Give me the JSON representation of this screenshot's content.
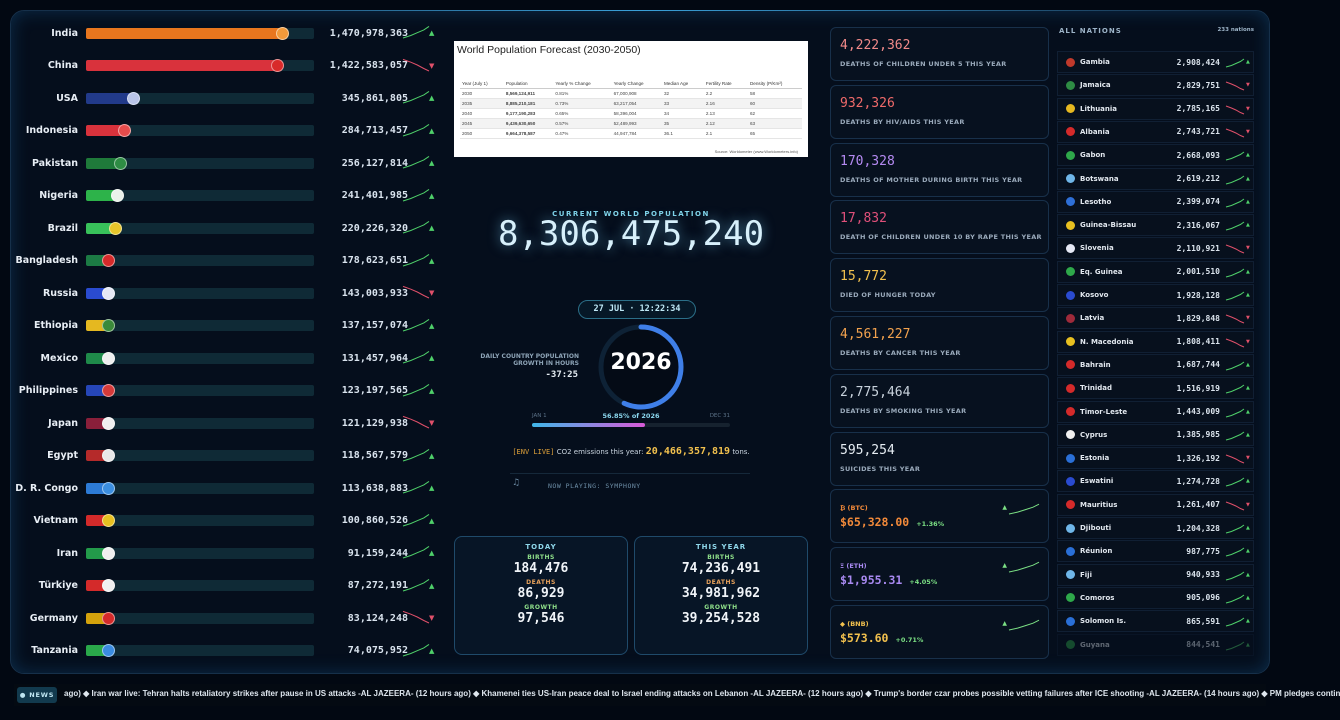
{
  "countries": [
    {
      "name": "India",
      "value": "1,470,978,363",
      "fill": 0.88,
      "color": "#e8761e",
      "flag": "#f29a3a",
      "trend": "up"
    },
    {
      "name": "China",
      "value": "1,422,583,057",
      "fill": 0.86,
      "color": "#d9323c",
      "flag": "#d82a2a",
      "trend": "down"
    },
    {
      "name": "USA",
      "value": "345,861,805",
      "fill": 0.23,
      "color": "#223a8a",
      "flag": "#b9c4e8",
      "trend": "up"
    },
    {
      "name": "Indonesia",
      "value": "284,713,457",
      "fill": 0.19,
      "color": "#d9323c",
      "flag": "#e74c4c",
      "trend": "up"
    },
    {
      "name": "Pakistan",
      "value": "256,127,814",
      "fill": 0.17,
      "color": "#1f7a3a",
      "flag": "#2e8c44",
      "trend": "up"
    },
    {
      "name": "Nigeria",
      "value": "241,401,985",
      "fill": 0.16,
      "color": "#2db34a",
      "flag": "#eaf2ea",
      "trend": "up"
    },
    {
      "name": "Brazil",
      "value": "220,226,320",
      "fill": 0.15,
      "color": "#38c15a",
      "flag": "#e7c62a",
      "trend": "up"
    },
    {
      "name": "Bangladesh",
      "value": "178,623,651",
      "fill": 0.12,
      "color": "#1c7a44",
      "flag": "#d62a2a",
      "trend": "up"
    },
    {
      "name": "Russia",
      "value": "143,003,933",
      "fill": 0.095,
      "color": "#2a4bd0",
      "flag": "#e6e9f5",
      "trend": "down"
    },
    {
      "name": "Ethiopia",
      "value": "137,157,074",
      "fill": 0.09,
      "color": "#e5b820",
      "flag": "#3a8a3a",
      "trend": "up"
    },
    {
      "name": "Mexico",
      "value": "131,457,964",
      "fill": 0.087,
      "color": "#1f8a4a",
      "flag": "#efefef",
      "trend": "up"
    },
    {
      "name": "Philippines",
      "value": "123,197,565",
      "fill": 0.082,
      "color": "#2646b8",
      "flag": "#d63a3a",
      "trend": "up"
    },
    {
      "name": "Japan",
      "value": "121,129,938",
      "fill": 0.08,
      "color": "#8a1f3a",
      "flag": "#f0f0f0",
      "trend": "down"
    },
    {
      "name": "Egypt",
      "value": "118,567,579",
      "fill": 0.078,
      "color": "#b52a2a",
      "flag": "#e9e9e9",
      "trend": "up"
    },
    {
      "name": "D. R. Congo",
      "value": "113,638,883",
      "fill": 0.075,
      "color": "#2d7bd6",
      "flag": "#3b8ee0",
      "trend": "up"
    },
    {
      "name": "Vietnam",
      "value": "100,860,526",
      "fill": 0.067,
      "color": "#d42a2a",
      "flag": "#e8c020",
      "trend": "up"
    },
    {
      "name": "Iran",
      "value": "91,159,244",
      "fill": 0.06,
      "color": "#239a4a",
      "flag": "#efefef",
      "trend": "up"
    },
    {
      "name": "Türkiye",
      "value": "87,272,191",
      "fill": 0.058,
      "color": "#d42a2a",
      "flag": "#f0f0f0",
      "trend": "up"
    },
    {
      "name": "Germany",
      "value": "83,124,248",
      "fill": 0.055,
      "color": "#d4a20c",
      "flag": "#d42a2a",
      "trend": "down"
    },
    {
      "name": "Tanzania",
      "value": "74,075,952",
      "fill": 0.049,
      "color": "#2aa84a",
      "flag": "#3a8be0",
      "trend": "up"
    }
  ],
  "forecast": {
    "title": "World Population Forecast (2030-2050)",
    "headers": [
      "Year (July 1)",
      "Population",
      "Yearly % Change",
      "Yearly Change",
      "Median Age",
      "Fertility Rate",
      "Density (P/Km²)"
    ],
    "rows": [
      [
        "2030",
        "8,569,124,911",
        "0.81%",
        "67,000,908",
        "32",
        "2.2",
        "58"
      ],
      [
        "2035",
        "8,885,210,181",
        "0.73%",
        "63,217,054",
        "33",
        "2.16",
        "60"
      ],
      [
        "2040",
        "9,177,190,283",
        "0.65%",
        "58,396,004",
        "34",
        "2.13",
        "62"
      ],
      [
        "2045",
        "9,439,630,650",
        "0.57%",
        "52,489,993",
        "35",
        "2.12",
        "63"
      ],
      [
        "2050",
        "9,664,378,587",
        "0.47%",
        "44,947,784",
        "36.1",
        "2.1",
        "65"
      ]
    ],
    "source": "Source: Worldometer (www.Worldometers.info)"
  },
  "center": {
    "cwp_label": "CURRENT WORLD POPULATION",
    "cwp_value": "8,306,475,240",
    "date": "27 JUL · 12:22:34",
    "year": "2026",
    "year_progress": 0.5685,
    "daily_label": "DAILY COUNTRY POPULATION GROWTH IN HOURS",
    "daily_value": "-37:25",
    "jan": "JAN 1",
    "dec": "DEC 31",
    "pct": "56.85% of 2026",
    "env_tag": "[ENV LIVE]",
    "env_text": "CO2 emissions this year:",
    "env_value": "20,466,357,819",
    "env_unit": "tons.",
    "note_icon": "♫",
    "now_playing": "NOW PLAYING: SYMPHONY"
  },
  "today": {
    "title": "TODAY",
    "births_label": "BIRTHS",
    "births": "184,476",
    "deaths_label": "DEATHS",
    "deaths": "86,929",
    "growth_label": "GROWTH",
    "growth": "97,546"
  },
  "thisyear": {
    "title": "THIS YEAR",
    "births_label": "BIRTHS",
    "births": "74,236,491",
    "deaths_label": "DEATHS",
    "deaths": "34,981,962",
    "growth_label": "GROWTH",
    "growth": "39,254,528"
  },
  "stats": [
    {
      "value": "4,222,362",
      "label": "DEATHS OF CHILDREN UNDER 5 THIS YEAR",
      "color": "#f28a8a"
    },
    {
      "value": "932,326",
      "label": "DEATHS BY HIV/AIDS THIS YEAR",
      "color": "#f06a6a"
    },
    {
      "value": "170,328",
      "label": "DEATHS OF MOTHER DURING BIRTH THIS YEAR",
      "color": "#b58af2"
    },
    {
      "value": "17,832",
      "label": "DEATH OF CHILDREN UNDER 10 BY RAPE THIS YEAR",
      "color": "#e0507a"
    },
    {
      "value": "15,772",
      "label": "DIED OF HUNGER TODAY",
      "color": "#f2c14e"
    },
    {
      "value": "4,561,227",
      "label": "DEATHS BY CANCER THIS YEAR",
      "color": "#f2a24e"
    },
    {
      "value": "2,775,464",
      "label": "DEATHS BY SMOKING THIS YEAR",
      "color": "#c8d2dc"
    },
    {
      "value": "595,254",
      "label": "SUICIDES THIS YEAR",
      "color": "#e6edf3"
    }
  ],
  "crypto": [
    {
      "ticker": "₿ (BTC)",
      "price": "$65,328.00",
      "change": "+1.36%",
      "color": "#f28a3a"
    },
    {
      "ticker": "Ξ (ETH)",
      "price": "$1,955.31",
      "change": "+4.05%",
      "color": "#a98af2"
    },
    {
      "ticker": "◆ (BNB)",
      "price": "$573.60",
      "change": "+0.71%",
      "color": "#f2c14e"
    }
  ],
  "nations": {
    "title": "ALL NATIONS",
    "count": "233 nations",
    "items": [
      {
        "name": "Gambia",
        "value": "2,908,424",
        "flag": "#c0392b",
        "trend": "up"
      },
      {
        "name": "Jamaica",
        "value": "2,829,751",
        "flag": "#2e8c44",
        "trend": "down"
      },
      {
        "name": "Lithuania",
        "value": "2,785,165",
        "flag": "#e6b820",
        "trend": "down"
      },
      {
        "name": "Albania",
        "value": "2,743,721",
        "flag": "#d42a2a",
        "trend": "down"
      },
      {
        "name": "Gabon",
        "value": "2,668,093",
        "flag": "#2ea84a",
        "trend": "up"
      },
      {
        "name": "Botswana",
        "value": "2,619,212",
        "flag": "#6fb6e8",
        "trend": "up"
      },
      {
        "name": "Lesotho",
        "value": "2,399,074",
        "flag": "#2e6fd6",
        "trend": "up"
      },
      {
        "name": "Guinea-Bissau",
        "value": "2,316,067",
        "flag": "#e8c020",
        "trend": "up"
      },
      {
        "name": "Slovenia",
        "value": "2,110,921",
        "flag": "#e6e9f5",
        "trend": "down"
      },
      {
        "name": "Eq. Guinea",
        "value": "2,001,510",
        "flag": "#2ea84a",
        "trend": "up"
      },
      {
        "name": "Kosovo",
        "value": "1,928,128",
        "flag": "#2a4bd0",
        "trend": "up"
      },
      {
        "name": "Latvia",
        "value": "1,829,848",
        "flag": "#9e2a3a",
        "trend": "down"
      },
      {
        "name": "N. Macedonia",
        "value": "1,808,411",
        "flag": "#e8c020",
        "trend": "down"
      },
      {
        "name": "Bahrain",
        "value": "1,687,744",
        "flag": "#d42a2a",
        "trend": "up"
      },
      {
        "name": "Trinidad",
        "value": "1,516,919",
        "flag": "#d42a2a",
        "trend": "up"
      },
      {
        "name": "Timor-Leste",
        "value": "1,443,009",
        "flag": "#d42a2a",
        "trend": "up"
      },
      {
        "name": "Cyprus",
        "value": "1,385,985",
        "flag": "#f0f0f0",
        "trend": "up"
      },
      {
        "name": "Estonia",
        "value": "1,326,192",
        "flag": "#2a6fd6",
        "trend": "down"
      },
      {
        "name": "Eswatini",
        "value": "1,274,728",
        "flag": "#2a4bd0",
        "trend": "up"
      },
      {
        "name": "Mauritius",
        "value": "1,261,407",
        "flag": "#d42a2a",
        "trend": "down"
      },
      {
        "name": "Djibouti",
        "value": "1,204,328",
        "flag": "#6fb6e8",
        "trend": "up"
      },
      {
        "name": "Réunion",
        "value": "987,775",
        "flag": "#2a6fd6",
        "trend": "up"
      },
      {
        "name": "Fiji",
        "value": "940,933",
        "flag": "#6fb6e8",
        "trend": "up"
      },
      {
        "name": "Comoros",
        "value": "905,096",
        "flag": "#2ea84a",
        "trend": "up"
      },
      {
        "name": "Solomon Is.",
        "value": "865,591",
        "flag": "#2a6fd6",
        "trend": "up"
      },
      {
        "name": "Guyana",
        "value": "844,541",
        "flag": "#2ea84a",
        "trend": "up"
      }
    ]
  },
  "ticker": {
    "badge": "● NEWS",
    "text": "ago) ◆ Iran war live: Tehran halts retaliatory strikes after pause in US attacks -AL JAZEERA- (12 hours ago) ◆ Khamenei ties US-Iran peace deal to Israel ending attacks on Lebanon -AL JAZEERA- (12 hours ago) ◆ Trump's border czar probes possible vetting failures after ICE shooting -AL JAZEERA- (14 hours ago) ◆ PM pledges contin"
  },
  "colors": {
    "up": "#4fd06a",
    "down": "#e0506a",
    "accent": "#3fb6e8"
  }
}
